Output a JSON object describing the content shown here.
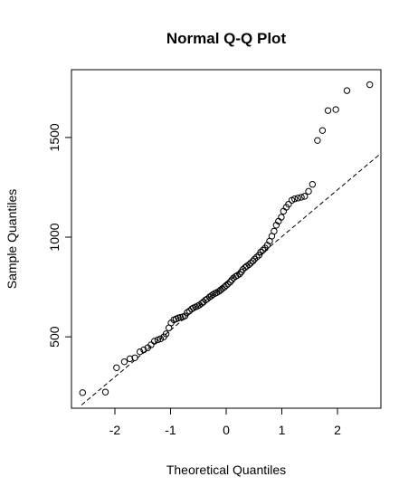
{
  "chart_data": {
    "type": "scatter",
    "title": "Normal Q-Q Plot",
    "xlabel": "Theoretical Quantiles",
    "ylabel": "Sample Quantiles",
    "xlim": [
      -2.78,
      2.78
    ],
    "ylim": [
      142,
      1840
    ],
    "x_ticks": [
      -2,
      -1,
      0,
      1,
      2
    ],
    "y_ticks": [
      500,
      1000,
      1500
    ],
    "grid": false,
    "marker": "open-circle",
    "point_color": "#000000",
    "points": [
      [
        -2.58,
        220
      ],
      [
        -2.17,
        223
      ],
      [
        -1.97,
        345
      ],
      [
        -1.83,
        375
      ],
      [
        -1.73,
        390
      ],
      [
        -1.64,
        395
      ],
      [
        -1.55,
        425
      ],
      [
        -1.48,
        435
      ],
      [
        -1.41,
        445
      ],
      [
        -1.35,
        460
      ],
      [
        -1.29,
        478
      ],
      [
        -1.23,
        485
      ],
      [
        -1.18,
        490
      ],
      [
        -1.12,
        500
      ],
      [
        -1.08,
        515
      ],
      [
        -1.03,
        545
      ],
      [
        -0.99,
        570
      ],
      [
        -0.94,
        585
      ],
      [
        -0.9,
        590
      ],
      [
        -0.86,
        595
      ],
      [
        -0.82,
        598
      ],
      [
        -0.78,
        600
      ],
      [
        -0.74,
        605
      ],
      [
        -0.7,
        622
      ],
      [
        -0.66,
        630
      ],
      [
        -0.62,
        640
      ],
      [
        -0.59,
        645
      ],
      [
        -0.55,
        650
      ],
      [
        -0.51,
        655
      ],
      [
        -0.48,
        660
      ],
      [
        -0.44,
        668
      ],
      [
        -0.41,
        675
      ],
      [
        -0.37,
        685
      ],
      [
        -0.34,
        690
      ],
      [
        -0.3,
        700
      ],
      [
        -0.27,
        705
      ],
      [
        -0.24,
        712
      ],
      [
        -0.2,
        718
      ],
      [
        -0.17,
        722
      ],
      [
        -0.13,
        728
      ],
      [
        -0.1,
        735
      ],
      [
        -0.07,
        742
      ],
      [
        -0.03,
        750
      ],
      [
        0.0,
        758
      ],
      [
        0.03,
        765
      ],
      [
        0.07,
        775
      ],
      [
        0.1,
        785
      ],
      [
        0.13,
        795
      ],
      [
        0.17,
        803
      ],
      [
        0.2,
        808
      ],
      [
        0.24,
        815
      ],
      [
        0.27,
        825
      ],
      [
        0.3,
        838
      ],
      [
        0.34,
        848
      ],
      [
        0.37,
        855
      ],
      [
        0.41,
        862
      ],
      [
        0.44,
        870
      ],
      [
        0.48,
        880
      ],
      [
        0.51,
        890
      ],
      [
        0.55,
        900
      ],
      [
        0.59,
        910
      ],
      [
        0.62,
        925
      ],
      [
        0.66,
        935
      ],
      [
        0.7,
        945
      ],
      [
        0.74,
        960
      ],
      [
        0.78,
        980
      ],
      [
        0.82,
        1005
      ],
      [
        0.86,
        1030
      ],
      [
        0.9,
        1060
      ],
      [
        0.94,
        1080
      ],
      [
        0.99,
        1100
      ],
      [
        1.03,
        1130
      ],
      [
        1.08,
        1150
      ],
      [
        1.12,
        1165
      ],
      [
        1.18,
        1185
      ],
      [
        1.23,
        1192
      ],
      [
        1.29,
        1196
      ],
      [
        1.35,
        1200
      ],
      [
        1.41,
        1205
      ],
      [
        1.48,
        1230
      ],
      [
        1.55,
        1265
      ],
      [
        1.64,
        1485
      ],
      [
        1.73,
        1535
      ],
      [
        1.83,
        1635
      ],
      [
        1.97,
        1640
      ],
      [
        2.17,
        1735
      ],
      [
        2.58,
        1765
      ]
    ],
    "reference_line": {
      "style": "dashed",
      "from": [
        -2.6,
        158
      ],
      "to": [
        2.8,
        1425
      ]
    }
  }
}
